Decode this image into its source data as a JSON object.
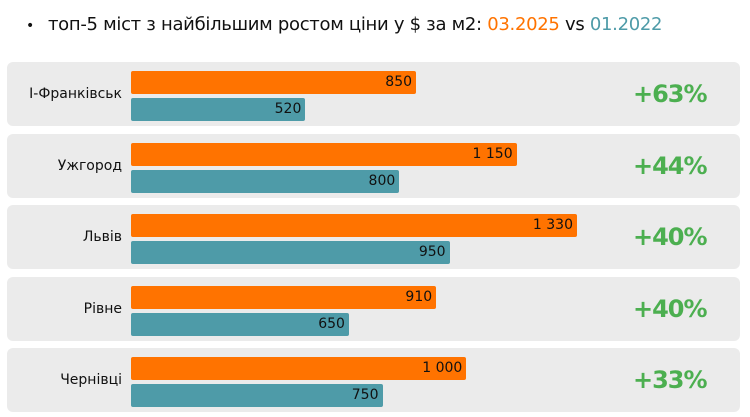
{
  "title": {
    "bullet": "•",
    "text": "топ-5 міст з найбільшим ростом ціни у $ за м2: ",
    "new_label": "03.2025",
    "vs": " vs ",
    "old_label": "01.2022"
  },
  "colors": {
    "new": "#FF7300",
    "old": "#4E9BA8",
    "growth": "#4CAF50",
    "row_bg": "#EBEBEB"
  },
  "chart_data": {
    "type": "bar",
    "orientation": "horizontal",
    "categories": [
      "І-Франківськ",
      "Ужгород",
      "Львів",
      "Рівне",
      "Чернівці"
    ],
    "series": [
      {
        "name": "03.2025",
        "values": [
          850,
          1150,
          1330,
          910,
          1000
        ],
        "labels": [
          "850",
          "1 150",
          "1 330",
          "910",
          "1 000"
        ]
      },
      {
        "name": "01.2022",
        "values": [
          520,
          800,
          950,
          650,
          750
        ],
        "labels": [
          "520",
          "800",
          "950",
          "650",
          "750"
        ]
      }
    ],
    "growth": [
      "+63%",
      "+44%",
      "+40%",
      "+40%",
      "+33%"
    ],
    "xlim": [
      0,
      1330
    ]
  }
}
